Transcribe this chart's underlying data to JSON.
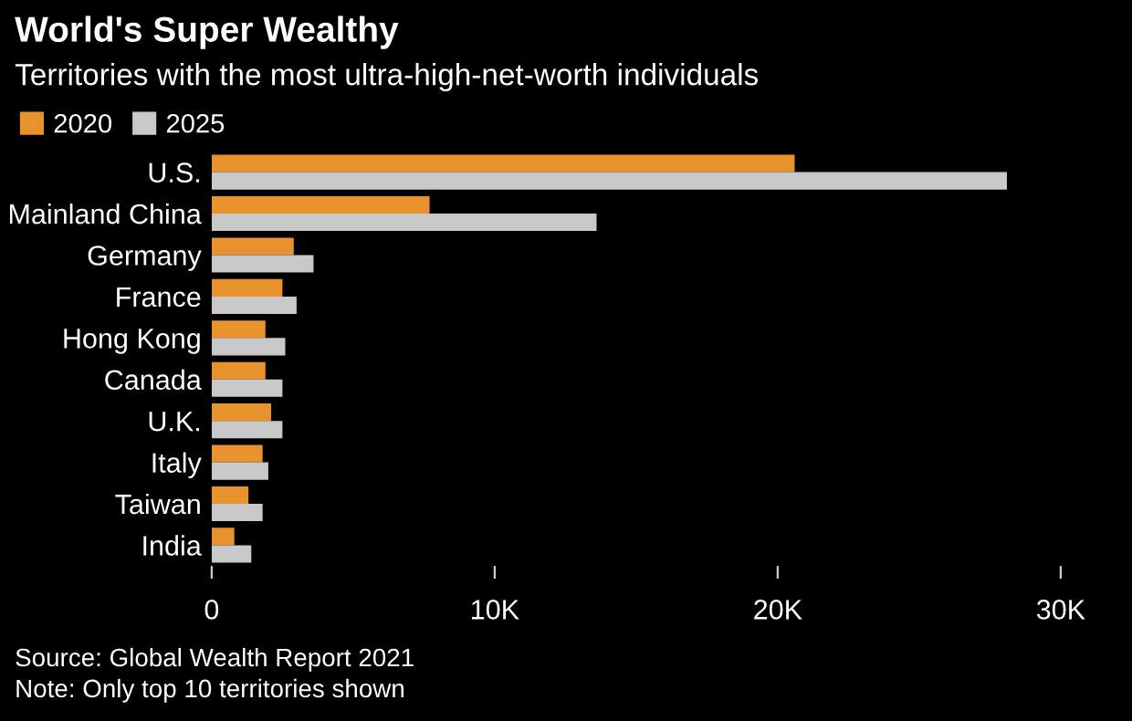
{
  "chart_data": {
    "type": "bar",
    "orientation": "horizontal",
    "title": "World's Super Wealthy",
    "subtitle": "Territories with the most ultra-high-net-worth individuals",
    "categories": [
      "U.S.",
      "Mainland China",
      "Germany",
      "France",
      "Hong Kong",
      "Canada",
      "U.K.",
      "Italy",
      "Taiwan",
      "India"
    ],
    "series": [
      {
        "name": "2020",
        "color": "#e8922e",
        "values": [
          20600,
          7700,
          2900,
          2500,
          1900,
          1900,
          2100,
          1800,
          1300,
          800
        ]
      },
      {
        "name": "2025",
        "color": "#c8c8c8",
        "values": [
          28100,
          13600,
          3600,
          3000,
          2600,
          2500,
          2500,
          2000,
          1800,
          1400
        ]
      }
    ],
    "xlim": [
      0,
      30000
    ],
    "xticks": [
      0,
      {
        "value": 10000,
        "label": "10K"
      },
      {
        "value": 20000,
        "label": "20K"
      },
      {
        "value": 30000,
        "label": "30K"
      }
    ],
    "grid": false,
    "legend": "top left",
    "annotations": [
      "Source: Global Wealth Report 2021",
      "Note: Only top 10 territories shown"
    ]
  }
}
